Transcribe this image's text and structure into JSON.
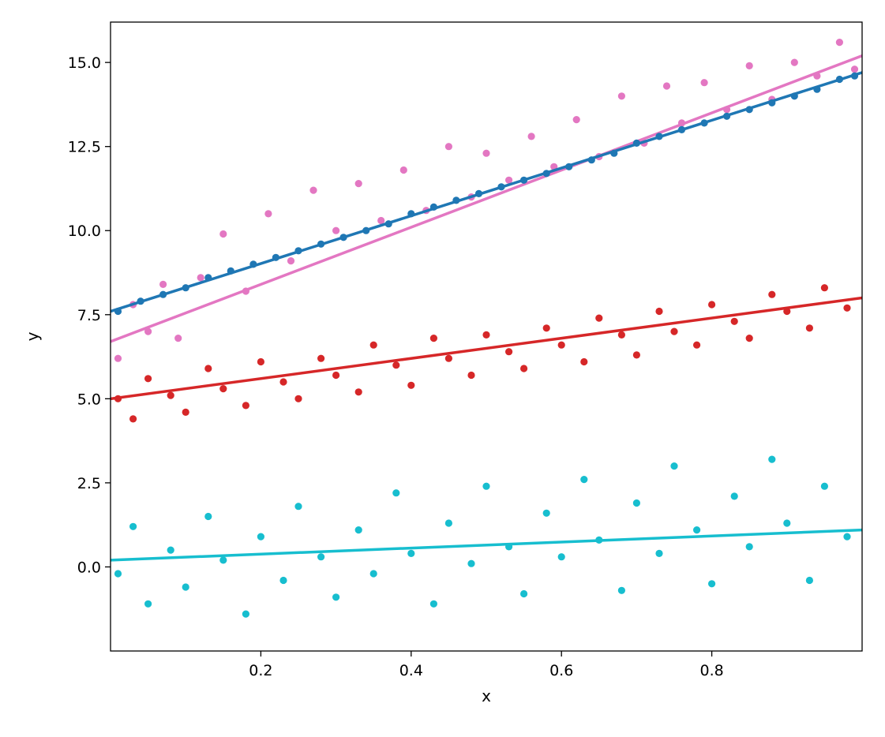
{
  "chart_data": {
    "type": "scatter",
    "title": "",
    "xlabel": "x",
    "ylabel": "y",
    "xlim": [
      0.0,
      1.0
    ],
    "ylim": [
      -2.5,
      16.2
    ],
    "x_ticks": [
      0.2,
      0.4,
      0.6,
      0.8
    ],
    "x_tick_labels": [
      "0.2",
      "0.4",
      "0.6",
      "0.8"
    ],
    "y_ticks": [
      0.0,
      2.5,
      5.0,
      7.5,
      10.0,
      12.5,
      15.0
    ],
    "y_tick_labels": [
      "0.0",
      "2.5",
      "5.0",
      "7.5",
      "10.0",
      "12.5",
      "15.0"
    ],
    "grid": false,
    "legend": "none",
    "series": [
      {
        "color": "#e377c2",
        "fit_line": [
          [
            0.0,
            6.7
          ],
          [
            1.0,
            15.2
          ]
        ],
        "points": [
          [
            0.01,
            6.2
          ],
          [
            0.03,
            7.8
          ],
          [
            0.05,
            7.0
          ],
          [
            0.07,
            8.4
          ],
          [
            0.09,
            6.8
          ],
          [
            0.12,
            8.6
          ],
          [
            0.15,
            9.9
          ],
          [
            0.18,
            8.2
          ],
          [
            0.21,
            10.5
          ],
          [
            0.24,
            9.1
          ],
          [
            0.27,
            11.2
          ],
          [
            0.3,
            10.0
          ],
          [
            0.33,
            11.4
          ],
          [
            0.36,
            10.3
          ],
          [
            0.39,
            11.8
          ],
          [
            0.42,
            10.6
          ],
          [
            0.45,
            12.5
          ],
          [
            0.48,
            11.0
          ],
          [
            0.5,
            12.3
          ],
          [
            0.53,
            11.5
          ],
          [
            0.56,
            12.8
          ],
          [
            0.59,
            11.9
          ],
          [
            0.62,
            13.3
          ],
          [
            0.65,
            12.2
          ],
          [
            0.68,
            14.0
          ],
          [
            0.71,
            12.6
          ],
          [
            0.74,
            14.3
          ],
          [
            0.76,
            13.2
          ],
          [
            0.79,
            14.4
          ],
          [
            0.82,
            13.6
          ],
          [
            0.85,
            14.9
          ],
          [
            0.88,
            13.9
          ],
          [
            0.91,
            15.0
          ],
          [
            0.94,
            14.6
          ],
          [
            0.97,
            15.6
          ],
          [
            0.99,
            14.8
          ]
        ]
      },
      {
        "color": "#1f77b4",
        "fit_line": [
          [
            0.0,
            7.6
          ],
          [
            1.0,
            14.7
          ]
        ],
        "points": [
          [
            0.01,
            7.6
          ],
          [
            0.04,
            7.9
          ],
          [
            0.07,
            8.1
          ],
          [
            0.1,
            8.3
          ],
          [
            0.13,
            8.6
          ],
          [
            0.16,
            8.8
          ],
          [
            0.19,
            9.0
          ],
          [
            0.22,
            9.2
          ],
          [
            0.25,
            9.4
          ],
          [
            0.28,
            9.6
          ],
          [
            0.31,
            9.8
          ],
          [
            0.34,
            10.0
          ],
          [
            0.37,
            10.2
          ],
          [
            0.4,
            10.5
          ],
          [
            0.43,
            10.7
          ],
          [
            0.46,
            10.9
          ],
          [
            0.49,
            11.1
          ],
          [
            0.52,
            11.3
          ],
          [
            0.55,
            11.5
          ],
          [
            0.58,
            11.7
          ],
          [
            0.61,
            11.9
          ],
          [
            0.64,
            12.1
          ],
          [
            0.67,
            12.3
          ],
          [
            0.7,
            12.6
          ],
          [
            0.73,
            12.8
          ],
          [
            0.76,
            13.0
          ],
          [
            0.79,
            13.2
          ],
          [
            0.82,
            13.4
          ],
          [
            0.85,
            13.6
          ],
          [
            0.88,
            13.8
          ],
          [
            0.91,
            14.0
          ],
          [
            0.94,
            14.2
          ],
          [
            0.97,
            14.5
          ],
          [
            0.99,
            14.6
          ]
        ]
      },
      {
        "color": "#d62728",
        "fit_line": [
          [
            0.0,
            5.0
          ],
          [
            1.0,
            8.0
          ]
        ],
        "points": [
          [
            0.01,
            5.0
          ],
          [
            0.03,
            4.4
          ],
          [
            0.05,
            5.6
          ],
          [
            0.08,
            5.1
          ],
          [
            0.1,
            4.6
          ],
          [
            0.13,
            5.9
          ],
          [
            0.15,
            5.3
          ],
          [
            0.18,
            4.8
          ],
          [
            0.2,
            6.1
          ],
          [
            0.23,
            5.5
          ],
          [
            0.25,
            5.0
          ],
          [
            0.28,
            6.2
          ],
          [
            0.3,
            5.7
          ],
          [
            0.33,
            5.2
          ],
          [
            0.35,
            6.6
          ],
          [
            0.38,
            6.0
          ],
          [
            0.4,
            5.4
          ],
          [
            0.43,
            6.8
          ],
          [
            0.45,
            6.2
          ],
          [
            0.48,
            5.7
          ],
          [
            0.5,
            6.9
          ],
          [
            0.53,
            6.4
          ],
          [
            0.55,
            5.9
          ],
          [
            0.58,
            7.1
          ],
          [
            0.6,
            6.6
          ],
          [
            0.63,
            6.1
          ],
          [
            0.65,
            7.4
          ],
          [
            0.68,
            6.9
          ],
          [
            0.7,
            6.3
          ],
          [
            0.73,
            7.6
          ],
          [
            0.75,
            7.0
          ],
          [
            0.78,
            6.6
          ],
          [
            0.8,
            7.8
          ],
          [
            0.83,
            7.3
          ],
          [
            0.85,
            6.8
          ],
          [
            0.88,
            8.1
          ],
          [
            0.9,
            7.6
          ],
          [
            0.93,
            7.1
          ],
          [
            0.95,
            8.3
          ],
          [
            0.98,
            7.7
          ]
        ]
      },
      {
        "color": "#17becf",
        "fit_line": [
          [
            0.0,
            0.2
          ],
          [
            1.0,
            1.1
          ]
        ],
        "points": [
          [
            0.01,
            -0.2
          ],
          [
            0.03,
            1.2
          ],
          [
            0.05,
            -1.1
          ],
          [
            0.08,
            0.5
          ],
          [
            0.1,
            -0.6
          ],
          [
            0.13,
            1.5
          ],
          [
            0.15,
            0.2
          ],
          [
            0.18,
            -1.4
          ],
          [
            0.2,
            0.9
          ],
          [
            0.23,
            -0.4
          ],
          [
            0.25,
            1.8
          ],
          [
            0.28,
            0.3
          ],
          [
            0.3,
            -0.9
          ],
          [
            0.33,
            1.1
          ],
          [
            0.35,
            -0.2
          ],
          [
            0.38,
            2.2
          ],
          [
            0.4,
            0.4
          ],
          [
            0.43,
            -1.1
          ],
          [
            0.45,
            1.3
          ],
          [
            0.48,
            0.1
          ],
          [
            0.5,
            2.4
          ],
          [
            0.53,
            0.6
          ],
          [
            0.55,
            -0.8
          ],
          [
            0.58,
            1.6
          ],
          [
            0.6,
            0.3
          ],
          [
            0.63,
            2.6
          ],
          [
            0.65,
            0.8
          ],
          [
            0.68,
            -0.7
          ],
          [
            0.7,
            1.9
          ],
          [
            0.73,
            0.4
          ],
          [
            0.75,
            3.0
          ],
          [
            0.78,
            1.1
          ],
          [
            0.8,
            -0.5
          ],
          [
            0.83,
            2.1
          ],
          [
            0.85,
            0.6
          ],
          [
            0.88,
            3.2
          ],
          [
            0.9,
            1.3
          ],
          [
            0.93,
            -0.4
          ],
          [
            0.95,
            2.4
          ],
          [
            0.98,
            0.9
          ]
        ]
      }
    ]
  }
}
